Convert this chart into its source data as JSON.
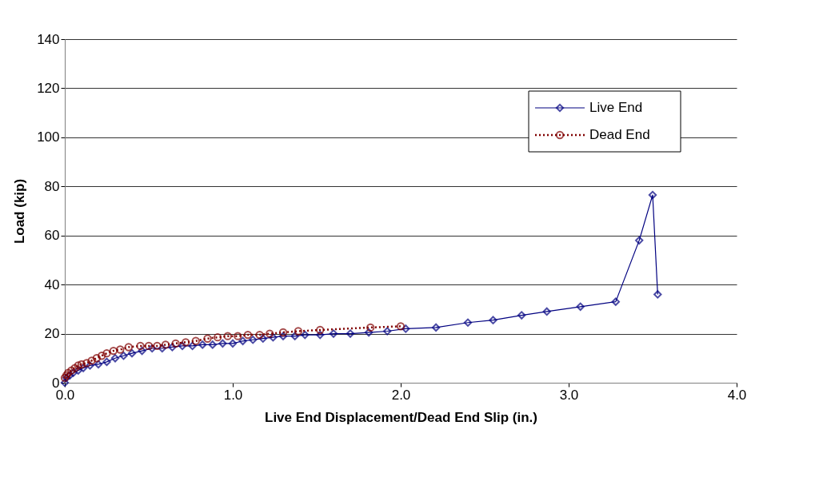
{
  "chart_data": {
    "type": "line",
    "xlabel": "Live End Displacement/Dead End Slip (in.)",
    "ylabel": "Load (kip)",
    "xlim": [
      0,
      4
    ],
    "xticks": [
      {
        "value": 0,
        "label": "0.0"
      },
      {
        "value": 1,
        "label": "1.0"
      },
      {
        "value": 2,
        "label": "2.0"
      },
      {
        "value": 3,
        "label": "3.0"
      },
      {
        "value": 4,
        "label": "4.0"
      }
    ],
    "ylim": [
      0,
      140
    ],
    "yticks": [
      0,
      20,
      40,
      60,
      80,
      100,
      120,
      140
    ],
    "grid": "y",
    "legend": "top right",
    "series": [
      {
        "name": "Live End",
        "color": "#000080",
        "marker": "diamond",
        "line_style": "solid",
        "x": [
          0,
          0.01,
          0.03,
          0.05,
          0.08,
          0.11,
          0.15,
          0.2,
          0.25,
          0.3,
          0.35,
          0.4,
          0.46,
          0.52,
          0.58,
          0.64,
          0.7,
          0.76,
          0.82,
          0.88,
          0.94,
          1.0,
          1.06,
          1.12,
          1.18,
          1.24,
          1.3,
          1.37,
          1.43,
          1.52,
          1.6,
          1.7,
          1.81,
          1.92,
          2.03,
          2.21,
          2.4,
          2.55,
          2.72,
          2.87,
          3.07,
          3.28,
          3.42,
          3.5,
          3.53
        ],
        "values": [
          0,
          2,
          3,
          4,
          5,
          6,
          7,
          7.5,
          8.5,
          10,
          11,
          12,
          13,
          14,
          14,
          14.5,
          15,
          15,
          15.5,
          15.5,
          16,
          16,
          17,
          17.5,
          18,
          18.5,
          19,
          19,
          19.5,
          19.5,
          20,
          20,
          20.5,
          21,
          22,
          22.5,
          24.5,
          25.5,
          27.5,
          29,
          31,
          33,
          58,
          76.5,
          36
        ]
      },
      {
        "name": "Dead End",
        "color": "#800000",
        "marker": "circle",
        "line_style": "dotted",
        "x": [
          0,
          0.01,
          0.02,
          0.04,
          0.06,
          0.08,
          0.1,
          0.13,
          0.16,
          0.19,
          0.22,
          0.25,
          0.29,
          0.33,
          0.38,
          0.45,
          0.5,
          0.55,
          0.6,
          0.66,
          0.72,
          0.78,
          0.85,
          0.91,
          0.97,
          1.03,
          1.09,
          1.16,
          1.22,
          1.3,
          1.39,
          1.52,
          1.82,
          2.0
        ],
        "values": [
          2,
          3,
          4,
          5,
          6,
          7,
          7.5,
          8,
          9,
          10,
          11,
          12,
          13,
          13.5,
          14.5,
          15,
          15,
          15,
          15.5,
          16,
          16.5,
          17,
          18,
          18.5,
          19,
          19,
          19.5,
          19.5,
          20,
          20.5,
          21,
          21.5,
          22.5,
          23
        ]
      }
    ]
  }
}
